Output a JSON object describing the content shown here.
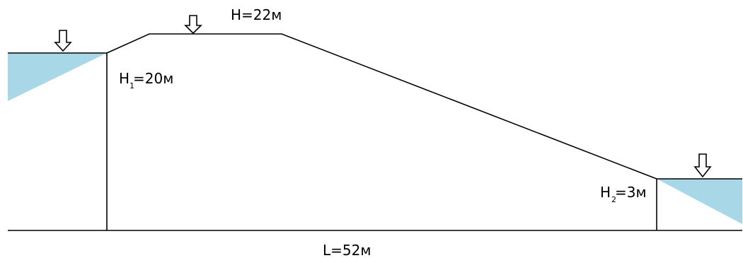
{
  "diagram": {
    "labels": {
      "crest_height": "H=22м",
      "upstream_head_main": "H",
      "upstream_head_sub": "1",
      "upstream_head_value": "=20м",
      "downstream_head_main": "H",
      "downstream_head_sub": "2",
      "downstream_head_value": "=3м",
      "length": "L=52м"
    },
    "colors": {
      "water": "#a8d8e8",
      "line": "#000000",
      "background": "#ffffff"
    },
    "icons": [
      "down-arrow-icon",
      "down-arrow-icon",
      "down-arrow-icon"
    ]
  }
}
